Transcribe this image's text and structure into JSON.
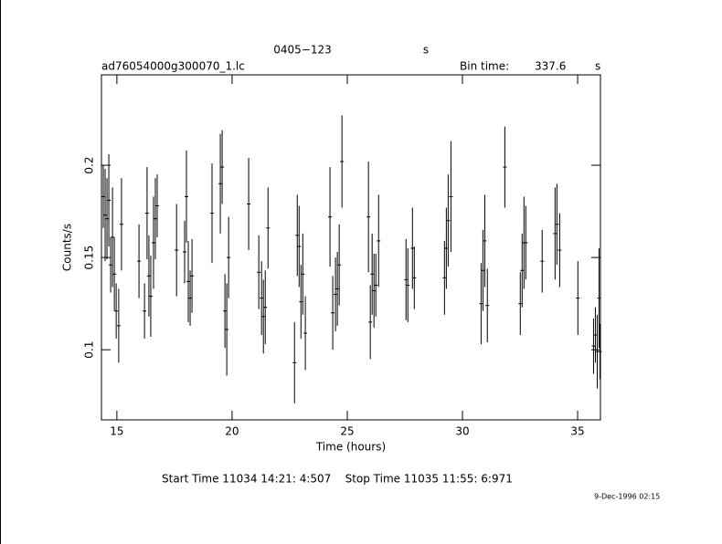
{
  "chart_data": {
    "type": "scatter",
    "title": "0405−123",
    "title_unit": "s",
    "file_name": "ad76054000g300070_1.lc",
    "bin_time_label": "Bin time:",
    "bin_time": 337.6,
    "bin_time_unit": "s",
    "x_label": "Time (hours)",
    "y_label": "Counts/s",
    "start_stop": "Start Time 11034 14:21: 4:507    Stop Time 11035 11:55: 6:971",
    "date_stamp": "9-Dec-1996 02:15",
    "xlim": [
      14.33,
      35.99
    ],
    "ylim": [
      0.062,
      0.249
    ],
    "xticks": [
      15,
      20,
      25,
      30,
      35
    ],
    "yticks": [
      0.1,
      0.15,
      0.2
    ],
    "color": "#000000",
    "series": [
      {
        "x": [
          14.41,
          14.49,
          14.57,
          14.65,
          14.73,
          14.81,
          14.89,
          14.97,
          15.08,
          15.2,
          15.96,
          16.2,
          16.31,
          16.39,
          16.47,
          16.59,
          16.67,
          16.75,
          17.59,
          17.94,
          18.02,
          18.1,
          18.18,
          18.26,
          19.13,
          19.49,
          19.57,
          19.69,
          19.77,
          19.85,
          20.72,
          21.16,
          21.28,
          21.36,
          21.44,
          21.56,
          22.71,
          22.83,
          22.91,
          22.99,
          23.07,
          23.18,
          24.25,
          24.37,
          24.49,
          24.57,
          24.65,
          24.77,
          25.92,
          26.0,
          26.08,
          26.16,
          26.24,
          26.36,
          27.55,
          27.63,
          27.83,
          27.91,
          29.22,
          29.3,
          29.38,
          29.5,
          30.81,
          30.89,
          30.97,
          31.08,
          31.84,
          32.51,
          32.59,
          32.67,
          32.75,
          33.46,
          34.02,
          34.1,
          34.22,
          35.01,
          35.69,
          35.77,
          35.85,
          35.93,
          35.97
        ],
        "values": [
          0.183,
          0.173,
          0.171,
          0.181,
          0.146,
          0.161,
          0.141,
          0.121,
          0.113,
          0.168,
          0.148,
          0.121,
          0.174,
          0.14,
          0.129,
          0.158,
          0.171,
          0.178,
          0.154,
          0.153,
          0.183,
          0.137,
          0.128,
          0.14,
          0.174,
          0.19,
          0.199,
          0.121,
          0.111,
          0.15,
          0.179,
          0.142,
          0.128,
          0.118,
          0.123,
          0.166,
          0.093,
          0.162,
          0.156,
          0.126,
          0.141,
          0.109,
          0.172,
          0.12,
          0.13,
          0.133,
          0.146,
          0.202,
          0.172,
          0.115,
          0.141,
          0.132,
          0.135,
          0.159,
          0.138,
          0.135,
          0.155,
          0.139,
          0.139,
          0.155,
          0.17,
          0.183,
          0.125,
          0.143,
          0.159,
          0.124,
          0.199,
          0.125,
          0.143,
          0.158,
          0.158,
          0.148,
          0.163,
          0.168,
          0.154,
          0.128,
          0.102,
          0.108,
          0.099,
          0.128,
          0.099
        ],
        "errors": [
          0.017,
          0.025,
          0.022,
          0.025,
          0.015,
          0.027,
          0.02,
          0.015,
          0.02,
          0.025,
          0.02,
          0.015,
          0.025,
          0.022,
          0.022,
          0.025,
          0.022,
          0.017,
          0.025,
          0.017,
          0.025,
          0.022,
          0.015,
          0.02,
          0.027,
          0.027,
          0.02,
          0.02,
          0.025,
          0.022,
          0.025,
          0.02,
          0.02,
          0.02,
          0.02,
          0.022,
          0.022,
          0.022,
          0.022,
          0.02,
          0.022,
          0.02,
          0.027,
          0.02,
          0.02,
          0.02,
          0.022,
          0.025,
          0.03,
          0.02,
          0.022,
          0.02,
          0.017,
          0.025,
          0.022,
          0.02,
          0.022,
          0.017,
          0.02,
          0.022,
          0.025,
          0.03,
          0.022,
          0.022,
          0.025,
          0.02,
          0.022,
          0.017,
          0.02,
          0.025,
          0.02,
          0.017,
          0.025,
          0.022,
          0.02,
          0.02,
          0.015,
          0.015,
          0.02,
          0.027,
          0.015
        ]
      }
    ]
  }
}
